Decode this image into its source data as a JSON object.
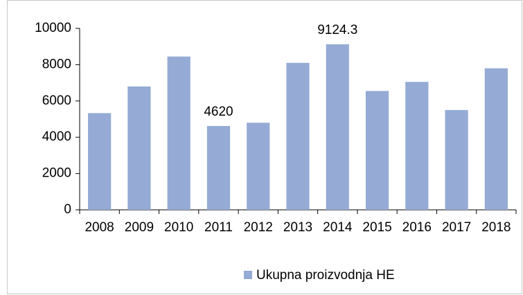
{
  "chart_data": {
    "type": "bar",
    "categories": [
      "2008",
      "2009",
      "2010",
      "2011",
      "2012",
      "2013",
      "2014",
      "2015",
      "2016",
      "2017",
      "2018"
    ],
    "series": [
      {
        "name": "Ukupna proizvodnja HE",
        "color": "#95abd5",
        "values": [
          5330,
          6800,
          8450,
          4620,
          4800,
          8100,
          9124.3,
          6550,
          7050,
          5500,
          7800
        ],
        "value_labels": [
          null,
          null,
          null,
          "4620",
          null,
          null,
          "9124.3",
          null,
          null,
          null,
          null
        ]
      }
    ],
    "ylim": [
      0,
      10000
    ],
    "yticks": [
      0,
      2000,
      4000,
      6000,
      8000,
      10000
    ],
    "grid": false,
    "legend": "bottom"
  }
}
